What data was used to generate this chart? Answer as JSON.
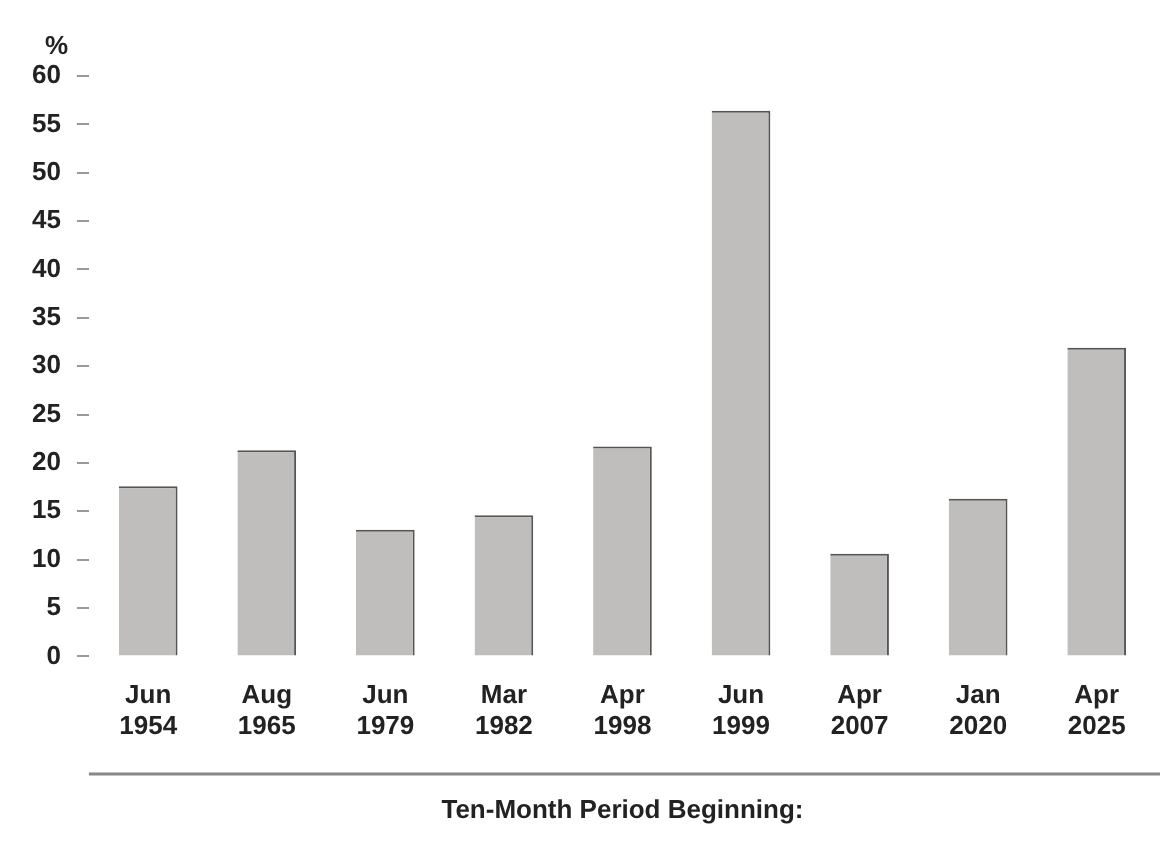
{
  "chart_data": {
    "type": "bar",
    "ylabel": "%",
    "xlabel": "Ten-Month Period Beginning:",
    "categories": [
      "Jun 1954",
      "Aug 1965",
      "Jun 1979",
      "Mar 1982",
      "Apr 1998",
      "Jun 1999",
      "Apr 2007",
      "Jan 2020",
      "Apr 2025"
    ],
    "values": [
      17.6,
      21.3,
      13.1,
      14.6,
      21.7,
      56.4,
      10.6,
      16.3,
      31.9
    ],
    "color": "#bfbebc",
    "ylim": [
      0,
      60
    ],
    "yticks": [
      0,
      5,
      10,
      15,
      20,
      25,
      30,
      35,
      40,
      45,
      50,
      55,
      60
    ],
    "grid": false,
    "legend": false
  }
}
